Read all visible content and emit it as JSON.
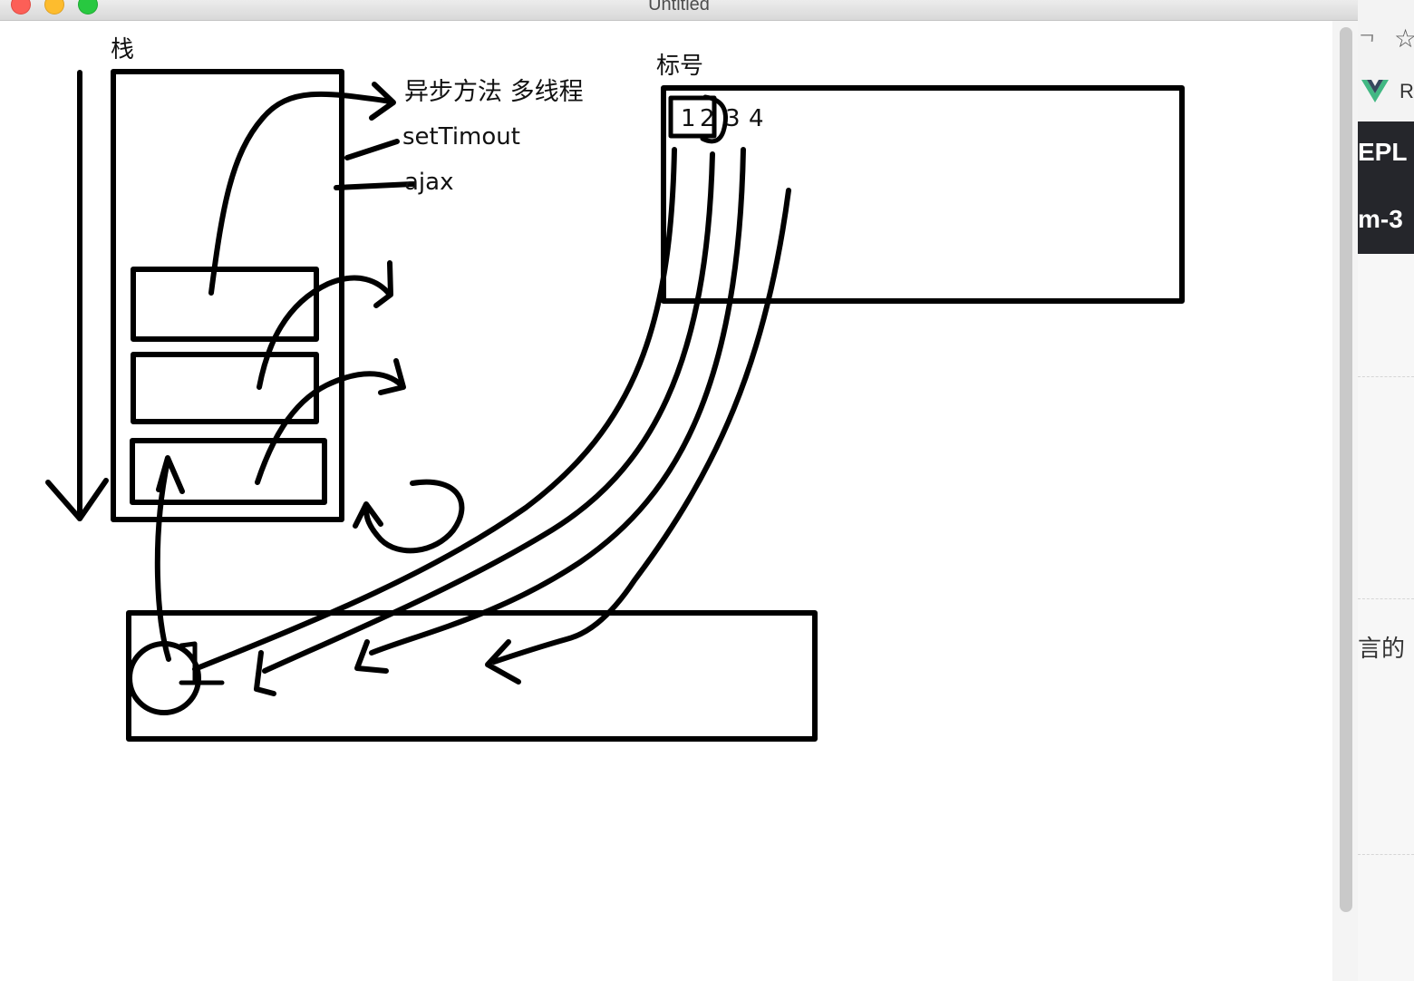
{
  "window": {
    "title": "Untitled"
  },
  "drawing": {
    "stack_label": "栈",
    "tag_label": "标号",
    "async_label": "异步方法 多线程",
    "settimeout_label": "setTimout",
    "ajax_label": "ajax",
    "numbers": [
      "1",
      "2",
      "3",
      "4"
    ]
  },
  "right_panel": {
    "icon1": "ᄀ",
    "star": "☆",
    "vue_text": "R",
    "repl_text": "EPL",
    "m3_text": "m-3",
    "lang_text": "言的"
  }
}
